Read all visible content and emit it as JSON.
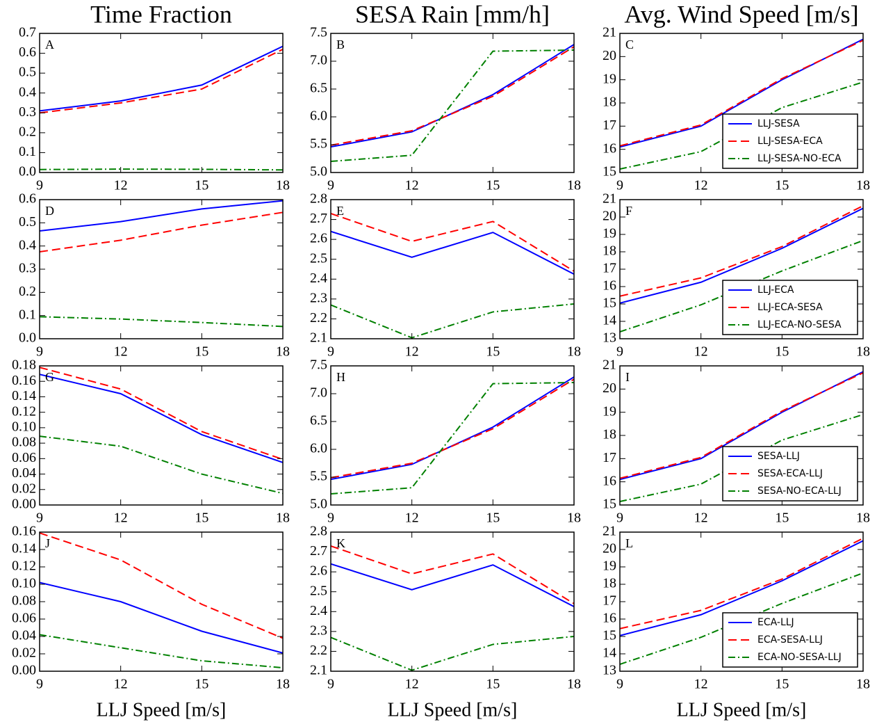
{
  "chart_data": [
    {
      "type": "line",
      "title": "Time Fraction",
      "annotation": "A",
      "x": [
        9,
        12,
        15,
        18
      ],
      "xlim": [
        9,
        18
      ],
      "xticks": [
        9,
        12,
        15,
        18
      ],
      "ylim": [
        0,
        0.7
      ],
      "yticks": [
        {
          "value": 0,
          "label": "0.0"
        },
        0.1,
        0.2,
        0.3,
        0.4,
        0.5,
        0.6,
        0.7
      ],
      "series": [
        {
          "color": "#0000ff",
          "linestyle": "solid",
          "values": [
            0.31,
            0.36,
            0.44,
            0.635
          ]
        },
        {
          "color": "#ff0000",
          "linestyle": "dashed",
          "values": [
            0.3,
            0.35,
            0.42,
            0.62
          ]
        },
        {
          "color": "#008000",
          "linestyle": "dashdot",
          "values": [
            0.015,
            0.017,
            0.016,
            0.013
          ]
        }
      ]
    },
    {
      "type": "line",
      "title": "SESA Rain [mm/h]",
      "annotation": "B",
      "x": [
        9,
        12,
        15,
        18
      ],
      "xlim": [
        9,
        18
      ],
      "xticks": [
        9,
        12,
        15,
        18
      ],
      "ylim": [
        5,
        7.5
      ],
      "yticks": [
        {
          "value": 5,
          "label": "5.0"
        },
        5.5,
        {
          "value": 6,
          "label": "6.0"
        },
        6.5,
        {
          "value": 7,
          "label": "7.0"
        },
        7.5
      ],
      "series": [
        {
          "color": "#0000ff",
          "linestyle": "solid",
          "values": [
            5.46,
            5.73,
            6.4,
            7.3
          ]
        },
        {
          "color": "#ff0000",
          "linestyle": "dashed",
          "values": [
            5.49,
            5.75,
            6.37,
            7.26
          ]
        },
        {
          "color": "#008000",
          "linestyle": "dashdot",
          "values": [
            5.2,
            5.31,
            7.18,
            7.2
          ]
        }
      ]
    },
    {
      "type": "line",
      "title": "Avg. Wind Speed [m/s]",
      "annotation": "C",
      "legend": "lower right",
      "x": [
        9,
        12,
        15,
        18
      ],
      "xlim": [
        9,
        18
      ],
      "xticks": [
        9,
        12,
        15,
        18
      ],
      "ylim": [
        15,
        21
      ],
      "yticks": [
        15,
        16,
        17,
        18,
        19,
        20,
        21
      ],
      "series": [
        {
          "name": "LLJ-SESA",
          "color": "#0000ff",
          "linestyle": "solid",
          "values": [
            16.1,
            17.0,
            19.0,
            20.75
          ]
        },
        {
          "name": "LLJ-SESA-ECA",
          "color": "#ff0000",
          "linestyle": "dashed",
          "values": [
            16.15,
            17.05,
            19.05,
            20.7
          ]
        },
        {
          "name": "LLJ-SESA-NO-ECA",
          "color": "#008000",
          "linestyle": "dashdot",
          "values": [
            15.15,
            15.9,
            17.8,
            18.9
          ]
        }
      ]
    },
    {
      "type": "line",
      "annotation": "D",
      "x": [
        9,
        12,
        15,
        18
      ],
      "xlim": [
        9,
        18
      ],
      "xticks": [
        9,
        12,
        15,
        18
      ],
      "ylim": [
        0,
        0.6
      ],
      "yticks": [
        {
          "value": 0,
          "label": "0.0"
        },
        0.1,
        0.2,
        0.3,
        0.4,
        0.5,
        0.6
      ],
      "series": [
        {
          "color": "#0000ff",
          "linestyle": "solid",
          "values": [
            0.465,
            0.505,
            0.56,
            0.595
          ]
        },
        {
          "color": "#ff0000",
          "linestyle": "dashed",
          "values": [
            0.375,
            0.425,
            0.49,
            0.545
          ]
        },
        {
          "color": "#008000",
          "linestyle": "dashdot",
          "values": [
            0.095,
            0.085,
            0.07,
            0.053
          ]
        }
      ]
    },
    {
      "type": "line",
      "annotation": "E",
      "x": [
        9,
        12,
        15,
        18
      ],
      "xlim": [
        9,
        18
      ],
      "xticks": [
        9,
        12,
        15,
        18
      ],
      "ylim": [
        2.1,
        2.8
      ],
      "yticks": [
        2.1,
        2.2,
        2.3,
        2.4,
        2.5,
        2.6,
        2.7,
        2.8
      ],
      "series": [
        {
          "color": "#0000ff",
          "linestyle": "solid",
          "values": [
            2.64,
            2.51,
            2.635,
            2.425
          ]
        },
        {
          "color": "#ff0000",
          "linestyle": "dashed",
          "values": [
            2.73,
            2.59,
            2.69,
            2.44
          ]
        },
        {
          "color": "#008000",
          "linestyle": "dashdot",
          "values": [
            2.27,
            2.105,
            2.235,
            2.275
          ]
        }
      ]
    },
    {
      "type": "line",
      "annotation": "F",
      "legend": "lower right",
      "x": [
        9,
        12,
        15,
        18
      ],
      "xlim": [
        9,
        18
      ],
      "xticks": [
        9,
        12,
        15,
        18
      ],
      "ylim": [
        13,
        21
      ],
      "yticks": [
        13,
        14,
        15,
        16,
        17,
        18,
        19,
        20,
        21
      ],
      "series": [
        {
          "name": "LLJ-ECA",
          "color": "#0000ff",
          "linestyle": "solid",
          "values": [
            15.05,
            16.25,
            18.2,
            20.5
          ]
        },
        {
          "name": "LLJ-ECA-SESA",
          "color": "#ff0000",
          "linestyle": "dashed",
          "values": [
            15.45,
            16.5,
            18.3,
            20.65
          ]
        },
        {
          "name": "LLJ-ECA-NO-SESA",
          "color": "#008000",
          "linestyle": "dashdot",
          "values": [
            13.4,
            14.95,
            16.9,
            18.65
          ]
        }
      ]
    },
    {
      "type": "line",
      "annotation": "G",
      "x": [
        9,
        12,
        15,
        18
      ],
      "xlim": [
        9,
        18
      ],
      "xticks": [
        9,
        12,
        15,
        18
      ],
      "ylim": [
        0,
        0.18
      ],
      "yticks": [
        {
          "value": 0,
          "label": "0.00"
        },
        0.02,
        0.04,
        0.06,
        0.08,
        {
          "value": 0.1,
          "label": "0.10"
        },
        0.12,
        0.14,
        0.16,
        0.18
      ],
      "series": [
        {
          "color": "#0000ff",
          "linestyle": "solid",
          "values": [
            0.169,
            0.144,
            0.091,
            0.055
          ]
        },
        {
          "color": "#ff0000",
          "linestyle": "dashed",
          "values": [
            0.178,
            0.15,
            0.095,
            0.059
          ]
        },
        {
          "color": "#008000",
          "linestyle": "dashdot",
          "values": [
            0.089,
            0.076,
            0.04,
            0.015
          ]
        }
      ]
    },
    {
      "type": "line",
      "annotation": "H",
      "x": [
        9,
        12,
        15,
        18
      ],
      "xlim": [
        9,
        18
      ],
      "xticks": [
        9,
        12,
        15,
        18
      ],
      "ylim": [
        5,
        7.5
      ],
      "yticks": [
        {
          "value": 5,
          "label": "5.0"
        },
        5.5,
        {
          "value": 6,
          "label": "6.0"
        },
        6.5,
        {
          "value": 7,
          "label": "7.0"
        },
        7.5
      ],
      "series": [
        {
          "color": "#0000ff",
          "linestyle": "solid",
          "values": [
            5.46,
            5.73,
            6.4,
            7.3
          ]
        },
        {
          "color": "#ff0000",
          "linestyle": "dashed",
          "values": [
            5.49,
            5.75,
            6.37,
            7.26
          ]
        },
        {
          "color": "#008000",
          "linestyle": "dashdot",
          "values": [
            5.2,
            5.31,
            7.18,
            7.2
          ]
        }
      ]
    },
    {
      "type": "line",
      "annotation": "I",
      "legend": "lower right",
      "x": [
        9,
        12,
        15,
        18
      ],
      "xlim": [
        9,
        18
      ],
      "xticks": [
        9,
        12,
        15,
        18
      ],
      "ylim": [
        15,
        21
      ],
      "yticks": [
        15,
        16,
        17,
        18,
        19,
        20,
        21
      ],
      "series": [
        {
          "name": "SESA-LLJ",
          "color": "#0000ff",
          "linestyle": "solid",
          "values": [
            16.1,
            17.0,
            19.0,
            20.75
          ]
        },
        {
          "name": "SESA-ECA-LLJ",
          "color": "#ff0000",
          "linestyle": "dashed",
          "values": [
            16.15,
            17.05,
            19.05,
            20.7
          ]
        },
        {
          "name": "SESA-NO-ECA-LLJ",
          "color": "#008000",
          "linestyle": "dashdot",
          "values": [
            15.15,
            15.9,
            17.8,
            18.9
          ]
        }
      ]
    },
    {
      "type": "line",
      "annotation": "J",
      "xlabel": "LLJ Speed [m/s]",
      "x": [
        9,
        12,
        15,
        18
      ],
      "xlim": [
        9,
        18
      ],
      "xticks": [
        9,
        12,
        15,
        18
      ],
      "ylim": [
        0,
        0.16
      ],
      "yticks": [
        {
          "value": 0,
          "label": "0.00"
        },
        0.02,
        0.04,
        0.06,
        0.08,
        {
          "value": 0.1,
          "label": "0.10"
        },
        0.12,
        0.14,
        0.16
      ],
      "series": [
        {
          "color": "#0000ff",
          "linestyle": "solid",
          "values": [
            0.102,
            0.08,
            0.046,
            0.021
          ]
        },
        {
          "color": "#ff0000",
          "linestyle": "dashed",
          "values": [
            0.159,
            0.128,
            0.077,
            0.038
          ]
        },
        {
          "color": "#008000",
          "linestyle": "dashdot",
          "values": [
            0.042,
            0.027,
            0.012,
            0.004
          ]
        }
      ]
    },
    {
      "type": "line",
      "annotation": "K",
      "xlabel": "LLJ Speed [m/s]",
      "x": [
        9,
        12,
        15,
        18
      ],
      "xlim": [
        9,
        18
      ],
      "xticks": [
        9,
        12,
        15,
        18
      ],
      "ylim": [
        2.1,
        2.8
      ],
      "yticks": [
        2.1,
        2.2,
        2.3,
        2.4,
        2.5,
        2.6,
        2.7,
        2.8
      ],
      "series": [
        {
          "color": "#0000ff",
          "linestyle": "solid",
          "values": [
            2.64,
            2.51,
            2.635,
            2.425
          ]
        },
        {
          "color": "#ff0000",
          "linestyle": "dashed",
          "values": [
            2.73,
            2.59,
            2.69,
            2.44
          ]
        },
        {
          "color": "#008000",
          "linestyle": "dashdot",
          "values": [
            2.27,
            2.105,
            2.235,
            2.275
          ]
        }
      ]
    },
    {
      "type": "line",
      "annotation": "L",
      "xlabel": "LLJ Speed [m/s]",
      "legend": "lower right",
      "x": [
        9,
        12,
        15,
        18
      ],
      "xlim": [
        9,
        18
      ],
      "xticks": [
        9,
        12,
        15,
        18
      ],
      "ylim": [
        13,
        21
      ],
      "yticks": [
        13,
        14,
        15,
        16,
        17,
        18,
        19,
        20,
        21
      ],
      "series": [
        {
          "name": "ECA-LLJ",
          "color": "#0000ff",
          "linestyle": "solid",
          "values": [
            15.05,
            16.25,
            18.2,
            20.5
          ]
        },
        {
          "name": "ECA-SESA-LLJ",
          "color": "#ff0000",
          "linestyle": "dashed",
          "values": [
            15.45,
            16.5,
            18.3,
            20.65
          ]
        },
        {
          "name": "ECA-NO-SESA-LLJ",
          "color": "#008000",
          "linestyle": "dashdot",
          "values": [
            13.4,
            14.95,
            16.9,
            18.65
          ]
        }
      ]
    }
  ]
}
